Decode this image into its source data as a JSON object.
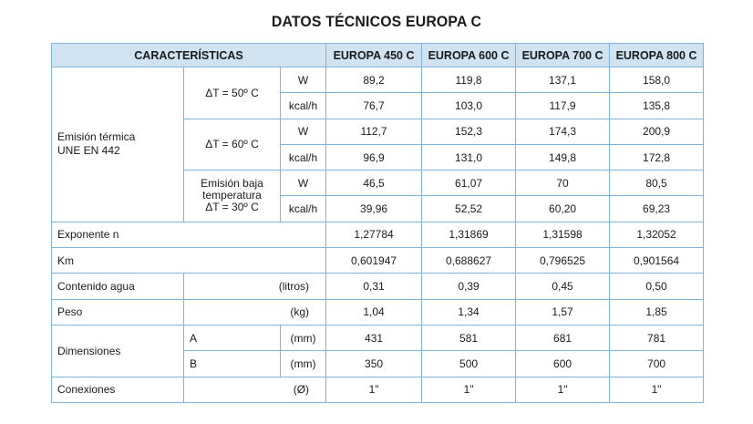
{
  "title": "DATOS TÉCNICOS EUROPA C",
  "header": {
    "caracteristicas": "CARACTERÍSTICAS",
    "models": [
      "EUROPA 450 C",
      "EUROPA 600 C",
      "EUROPA 700 C",
      "EUROPA 800 C"
    ]
  },
  "emision": {
    "label_line1": "Emisión térmica",
    "label_line2": "UNE EN 442",
    "groups": [
      {
        "label": "ΔT = 50º C",
        "rows": [
          {
            "unit": "W",
            "values": [
              "89,2",
              "119,8",
              "137,1",
              "158,0"
            ]
          },
          {
            "unit": "kcal/h",
            "values": [
              "76,7",
              "103,0",
              "117,9",
              "135,8"
            ]
          }
        ]
      },
      {
        "label": "ΔT = 60º C",
        "rows": [
          {
            "unit": "W",
            "values": [
              "112,7",
              "152,3",
              "174,3",
              "200,9"
            ]
          },
          {
            "unit": "kcal/h",
            "values": [
              "96,9",
              "131,0",
              "149,8",
              "172,8"
            ]
          }
        ]
      },
      {
        "label_line1": "Emisión baja",
        "label_line2": "temperatura",
        "label_line3": "ΔT = 30º C",
        "rows": [
          {
            "unit": "W",
            "values": [
              "46,5",
              "61,07",
              "70",
              "80,5"
            ]
          },
          {
            "unit": "kcal/h",
            "values": [
              "39,96",
              "52,52",
              "60,20",
              "69,23"
            ]
          }
        ]
      }
    ]
  },
  "exponente": {
    "label": "Exponente n",
    "values": [
      "1,27784",
      "1,31869",
      "1,31598",
      "1,32052"
    ]
  },
  "km": {
    "label": "Km",
    "values": [
      "0,601947",
      "0,688627",
      "0,796525",
      "0,901564"
    ]
  },
  "contenido": {
    "label": "Contenido agua",
    "unit": "(litros)",
    "values": [
      "0,31",
      "0,39",
      "0,45",
      "0,50"
    ]
  },
  "peso": {
    "label": "Peso",
    "unit": "(kg)",
    "values": [
      "1,04",
      "1,34",
      "1,57",
      "1,85"
    ]
  },
  "dimensiones": {
    "label": "Dimensiones",
    "rows": [
      {
        "key": "A",
        "unit": "(mm)",
        "values": [
          "431",
          "581",
          "681",
          "781"
        ]
      },
      {
        "key": "B",
        "unit": "(mm)",
        "values": [
          "350",
          "500",
          "600",
          "700"
        ]
      }
    ]
  },
  "conexiones": {
    "label": "Conexiones",
    "unit": "(Ø)",
    "values": [
      "1\"",
      "1\"",
      "1\"",
      "1\""
    ]
  }
}
